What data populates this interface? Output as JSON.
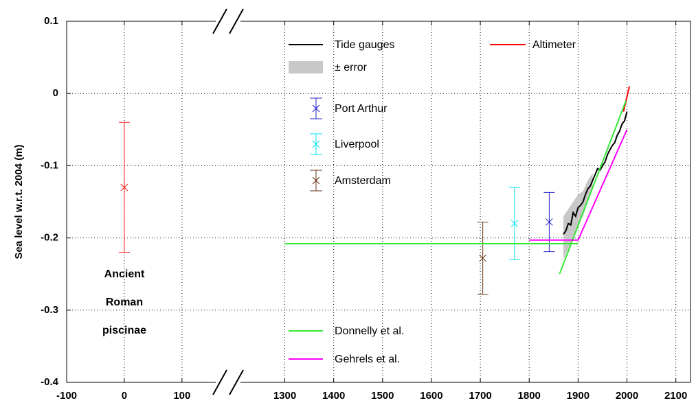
{
  "chart_data": {
    "type": "line",
    "ylabel": "Sea level w.r.t. 2004 (m)",
    "ylim": [
      -0.4,
      0.1
    ],
    "yticks": [
      0.1,
      0,
      -0.1,
      -0.2,
      -0.3,
      -0.4
    ],
    "x_segments": [
      {
        "xlim": [
          -100,
          180
        ],
        "xticks": [
          -100,
          0,
          100
        ]
      },
      {
        "xlim": [
          1184,
          2130
        ],
        "xticks": [
          1300,
          1400,
          1500,
          1600,
          1700,
          1800,
          1900,
          2000,
          2100
        ]
      }
    ],
    "grid": true,
    "annotation": [
      "Ancient",
      "Roman",
      "piscinae"
    ],
    "series": [
      {
        "name": "Tide gauges",
        "type": "line",
        "color": "#000000",
        "x": [
          1870,
          1875,
          1880,
          1885,
          1890,
          1895,
          1900,
          1905,
          1910,
          1915,
          1920,
          1925,
          1930,
          1935,
          1940,
          1945,
          1950,
          1955,
          1960,
          1965,
          1970,
          1975,
          1980,
          1985,
          1990,
          1995,
          2000
        ],
        "values": [
          -0.195,
          -0.19,
          -0.18,
          -0.182,
          -0.165,
          -0.17,
          -0.158,
          -0.155,
          -0.15,
          -0.14,
          -0.132,
          -0.128,
          -0.12,
          -0.112,
          -0.104,
          -0.106,
          -0.1,
          -0.095,
          -0.085,
          -0.078,
          -0.072,
          -0.068,
          -0.058,
          -0.052,
          -0.042,
          -0.038,
          -0.025
        ]
      },
      {
        "name": "± error",
        "type": "band",
        "color": "#c8c8c8",
        "x": [
          1870,
          1880,
          1890,
          1900,
          1910,
          1920,
          1930
        ],
        "upper": [
          -0.17,
          -0.16,
          -0.15,
          -0.14,
          -0.135,
          -0.12,
          -0.11
        ],
        "lower": [
          -0.23,
          -0.215,
          -0.2,
          -0.18,
          -0.17,
          -0.15,
          -0.13
        ]
      },
      {
        "name": "Altimeter",
        "type": "line",
        "color": "#ff0000",
        "x": [
          1993,
          2005
        ],
        "values": [
          -0.025,
          0.01
        ]
      },
      {
        "name": "Port Arthur",
        "type": "errorbar",
        "color": "#2020c8",
        "x": [
          1841
        ],
        "values": [
          -0.178
        ],
        "errors": [
          0.041
        ]
      },
      {
        "name": "Liverpool",
        "type": "errorbar",
        "color": "#00e0ee",
        "x": [
          1770
        ],
        "values": [
          -0.18
        ],
        "errors": [
          0.05
        ]
      },
      {
        "name": "Amsterdam",
        "type": "errorbar",
        "color": "#663311",
        "x": [
          1705
        ],
        "values": [
          -0.228
        ],
        "errors": [
          0.05
        ]
      },
      {
        "name": "Donnelly et al.",
        "type": "line",
        "color": "#33e833",
        "x": [
          1300,
          1900,
          null,
          1862,
          1998
        ],
        "values": [
          -0.208,
          -0.208,
          null,
          -0.25,
          -0.01
        ]
      },
      {
        "name": "Gehrels et al.",
        "type": "line",
        "color": "#ff00ff",
        "x": [
          1800,
          1900,
          2000
        ],
        "values": [
          -0.203,
          -0.203,
          -0.05
        ]
      },
      {
        "type": "errorbar",
        "color": "#ff2020",
        "x": [
          0
        ],
        "values": [
          -0.13
        ],
        "errors": [
          0.09
        ]
      }
    ]
  }
}
